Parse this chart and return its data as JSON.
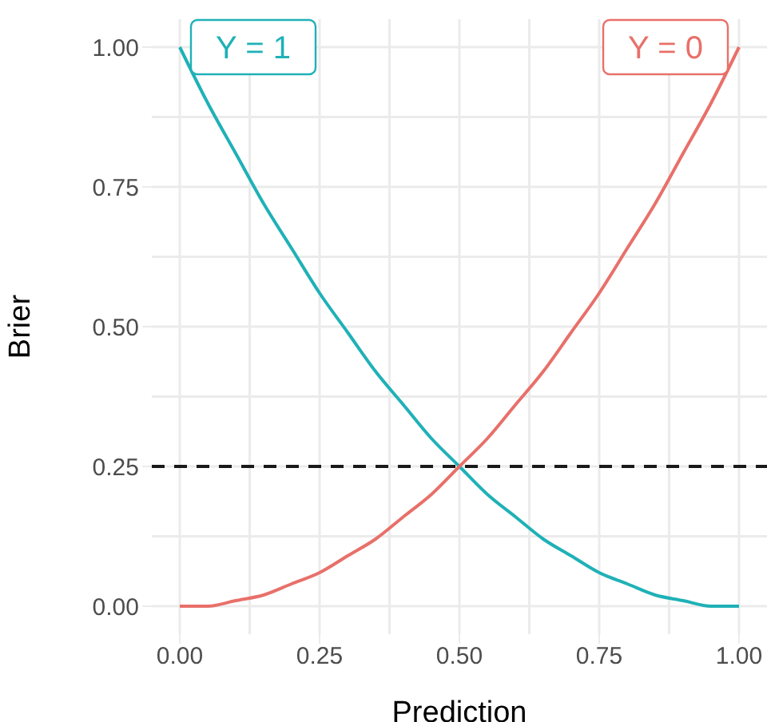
{
  "chart_data": {
    "type": "line",
    "xlabel": "Prediction",
    "ylabel": "Brier",
    "x": [
      0,
      0.05,
      0.1,
      0.15,
      0.2,
      0.25,
      0.3,
      0.35,
      0.4,
      0.45,
      0.5,
      0.55,
      0.6,
      0.65,
      0.7,
      0.75,
      0.8,
      0.85,
      0.9,
      0.95,
      1
    ],
    "series": [
      {
        "name": "Y = 1",
        "color": "#1fb1b7",
        "values": [
          1,
          0.9,
          0.81,
          0.72,
          0.64,
          0.56,
          0.49,
          0.42,
          0.36,
          0.3,
          0.25,
          0.2,
          0.16,
          0.12,
          0.09,
          0.06,
          0.04,
          0.02,
          0.01,
          0,
          0
        ]
      },
      {
        "name": "Y = 0",
        "color": "#e8706a",
        "values": [
          0,
          0,
          0.01,
          0.02,
          0.04,
          0.06,
          0.09,
          0.12,
          0.16,
          0.2,
          0.25,
          0.3,
          0.36,
          0.42,
          0.49,
          0.56,
          0.64,
          0.72,
          0.81,
          0.9,
          1
        ]
      }
    ],
    "xlim": [
      -0.05,
      1.05
    ],
    "ylim": [
      -0.05,
      1.05
    ],
    "xticks": [
      {
        "value": 0,
        "label": "0.00"
      },
      {
        "value": 0.25,
        "label": "0.25"
      },
      {
        "value": 0.5,
        "label": "0.50"
      },
      {
        "value": 0.75,
        "label": "0.75"
      },
      {
        "value": 1,
        "label": "1.00"
      }
    ],
    "yticks": [
      {
        "value": 0,
        "label": "0.00"
      },
      {
        "value": 0.25,
        "label": "0.25"
      },
      {
        "value": 0.5,
        "label": "0.50"
      },
      {
        "value": 0.75,
        "label": "0.75"
      },
      {
        "value": 1,
        "label": "1.00"
      }
    ],
    "ref_lines": [
      {
        "axis": "y",
        "value": 0.25,
        "color": "#1a1a1a",
        "line_style": "dashed"
      }
    ],
    "grid": true,
    "marker": "none",
    "line_style": "solid"
  }
}
